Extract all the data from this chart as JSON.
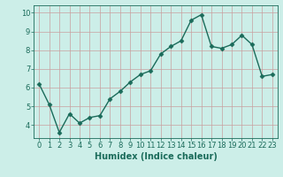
{
  "x": [
    0,
    1,
    2,
    3,
    4,
    5,
    6,
    7,
    8,
    9,
    10,
    11,
    12,
    13,
    14,
    15,
    16,
    17,
    18,
    19,
    20,
    21,
    22,
    23
  ],
  "y": [
    6.2,
    5.1,
    3.6,
    4.6,
    4.1,
    4.4,
    4.5,
    5.4,
    5.8,
    6.3,
    6.7,
    6.9,
    7.8,
    8.2,
    8.5,
    9.6,
    9.9,
    8.2,
    8.1,
    8.3,
    8.8,
    8.3,
    6.6,
    6.7
  ],
  "line_color": "#1a6b5a",
  "marker": "D",
  "marker_size": 2.5,
  "bg_color": "#cceee8",
  "grid_color_h": "#c8a0a0",
  "grid_color_v": "#c8a0a0",
  "xlabel": "Humidex (Indice chaleur)",
  "xlabel_fontsize": 7,
  "tick_fontsize": 6,
  "ylim": [
    3.3,
    10.4
  ],
  "xlim": [
    -0.5,
    23.5
  ],
  "yticks": [
    4,
    5,
    6,
    7,
    8,
    9,
    10
  ],
  "xticks": [
    0,
    1,
    2,
    3,
    4,
    5,
    6,
    7,
    8,
    9,
    10,
    11,
    12,
    13,
    14,
    15,
    16,
    17,
    18,
    19,
    20,
    21,
    22,
    23
  ]
}
